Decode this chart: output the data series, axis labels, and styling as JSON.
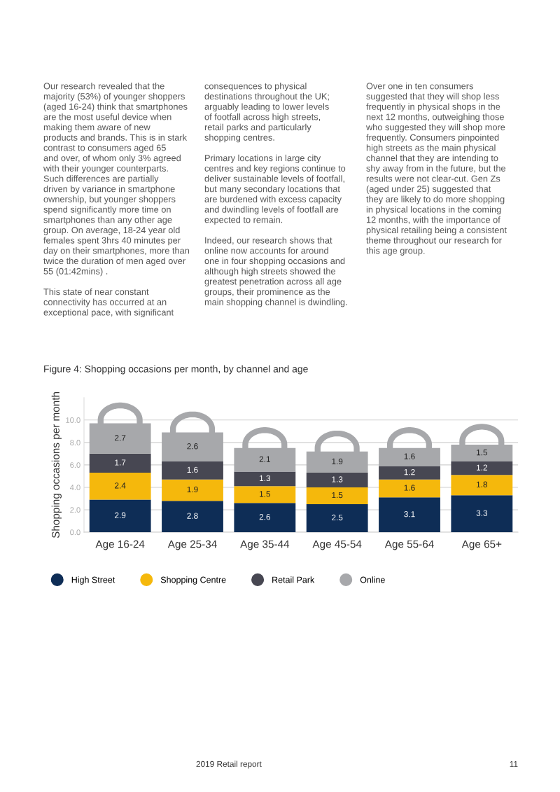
{
  "chart_data": {
    "type": "bar",
    "stacked": true,
    "title": "Figure 4: Shopping occasions per month, by channel and age",
    "ylabel": "Shopping occasions per month",
    "categories": [
      "Age 16-24",
      "Age 25-34",
      "Age 35-44",
      "Age 45-54",
      "Age 55-64",
      "Age 65+"
    ],
    "series": [
      {
        "name": "High Street",
        "color": "#0e2d56",
        "values": [
          2.9,
          2.8,
          2.6,
          2.5,
          3.1,
          3.3
        ]
      },
      {
        "name": "Shopping Centre",
        "color": "#f5b80c",
        "values": [
          2.4,
          1.9,
          1.5,
          1.5,
          1.6,
          1.8
        ]
      },
      {
        "name": "Retail Park",
        "color": "#474752",
        "values": [
          1.7,
          1.6,
          1.3,
          1.3,
          1.2,
          1.2
        ]
      },
      {
        "name": "Online",
        "color": "#a7a8ab",
        "values": [
          2.7,
          2.6,
          2.1,
          1.9,
          1.6,
          1.5
        ]
      }
    ],
    "ylim": [
      0,
      12
    ],
    "yticks": [
      {
        "value": 0,
        "label": "0.0"
      },
      {
        "value": 2,
        "label": "2.0"
      },
      {
        "value": 4,
        "label": "4.0"
      },
      {
        "value": 6,
        "label": "6.0"
      },
      {
        "value": 8,
        "label": "8.0"
      },
      {
        "value": 10,
        "label": "10.0"
      }
    ],
    "grid": "y",
    "legend": "bottom",
    "data_labels": true,
    "annotations": [
      "Our research revealed that the\nmajority (53%) of younger shoppers\n(aged 16-24) think that smartphones\nare the most useful device when\nmaking them aware of new\nproducts and brands. This is in stark\ncontrast to consumers aged 65\nand over, of whom only 3% agreed\nwith their younger counterparts.\nSuch differences are partially\ndriven by variance in smartphone\nownership, but younger shoppers\nspend significantly more time on\nsmartphones than any other age\ngroup. On average, 18-24 year old\nfemales spent 3hrs 40 minutes per\nday on their smartphones, more than\ntwice the duration of men aged over\n55 (01:42mins) .\n\nThis state of near constant\nconnectivity has occurred at an\nexceptional pace, with significant",
      "consequences to physical\ndestinations throughout the UK;\narguably leading to lower levels\nof footfall across high streets,\nretail parks and particularly\nshopping centres.\n\nPrimary locations in large city\ncentres and key regions continue to\ndeliver sustainable levels of footfall,\nbut many secondary locations that\nare burdened with excess capacity\nand dwindling levels of footfall are\nexpected to remain.\n\nIndeed, our research shows that\nonline now accounts for around\none in four shopping occasions and\nalthough high streets showed the\ngreatest penetration across all age\ngroups, their prominence as the\nmain shopping channel is dwindling.",
      "Over one in ten consumers\nsuggested that they will shop less\nfrequently in physical shops in the\nnext 12 months, outweighing those\nwho suggested they will shop more\nfrequently. Consumers pinpointed\nhigh streets as the main physical\nchannel that they are intending to\nshy away from in the future, but the\nresults were not clear-cut. Gen Zs\n(aged under 25) suggested that\nthey are likely to do more shopping\nin physical locations in the coming\n12 months, with the importance of\nphysical retailing being a consistent\ntheme throughout our research for\nthis age group.",
      "2019 Retail report",
      "11"
    ]
  }
}
